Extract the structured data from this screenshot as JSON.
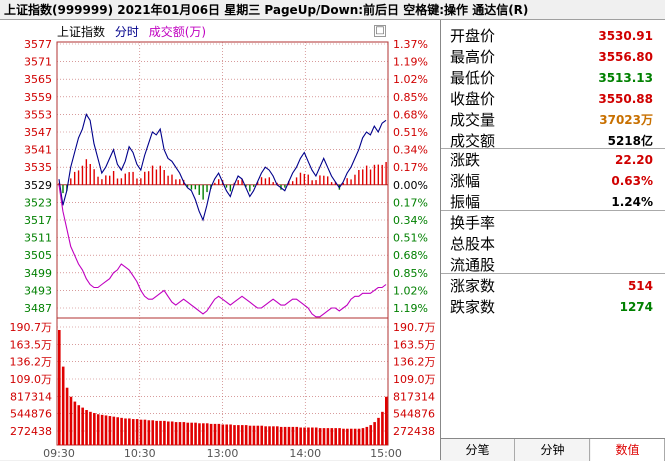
{
  "header": {
    "title": "上证指数(999999)  2021年01月06日 星期三 PageUp/Down:前后日 空格键:操作 通达信(R)"
  },
  "legend": {
    "name": "上证指数",
    "minute": "分时",
    "volume": "成交额(万)"
  },
  "close_glyph": "□",
  "stats": [
    {
      "label": "开盘价",
      "value": "3530.91",
      "color": "#d00000"
    },
    {
      "label": "最高价",
      "value": "3556.80",
      "color": "#d00000"
    },
    {
      "label": "最低价",
      "value": "3513.13",
      "color": "#008000"
    },
    {
      "label": "收盘价",
      "value": "3550.88",
      "color": "#d00000"
    },
    {
      "label": "成交量",
      "value": "37023万",
      "color": "#c87000"
    },
    {
      "label": "成交额",
      "value": "5218亿",
      "color": "#000000"
    },
    {
      "label": "涨跌",
      "value": "22.20",
      "color": "#d00000"
    },
    {
      "label": "涨幅",
      "value": "0.63%",
      "color": "#d00000"
    },
    {
      "label": "振幅",
      "value": "1.24%",
      "color": "#000000"
    },
    {
      "label": "换手率",
      "value": "",
      "color": "#000000"
    },
    {
      "label": "总股本",
      "value": "",
      "color": "#000000"
    },
    {
      "label": "流通股",
      "value": "",
      "color": "#000000"
    },
    {
      "label": "涨家数",
      "value": "514",
      "color": "#d00000"
    },
    {
      "label": "跌家数",
      "value": "1274",
      "color": "#008000"
    }
  ],
  "tabs": [
    "分笔",
    "分钟",
    "数值"
  ],
  "active_tab": 2,
  "chart_data": {
    "type": "line",
    "x_ticks": [
      "09:30",
      "10:30",
      "13:00",
      "14:00",
      "15:00"
    ],
    "price_ticks": [
      "3577",
      "3571",
      "3565",
      "3559",
      "3553",
      "3547",
      "3541",
      "3535",
      "3529",
      "3523",
      "3517",
      "3511",
      "3505",
      "3499",
      "3493",
      "3487"
    ],
    "pct_ticks": [
      "1.37%",
      "1.19%",
      "1.02%",
      "0.85%",
      "0.68%",
      "0.51%",
      "0.34%",
      "0.17%",
      "0.00%",
      "0.17%",
      "0.34%",
      "0.51%",
      "0.68%",
      "0.85%",
      "1.02%",
      "1.19%"
    ],
    "base_price": 3529,
    "price_range": [
      3487,
      3577
    ],
    "volume_ticks": [
      "190.7万",
      "163.5万",
      "136.2万",
      "109.0万",
      "817314",
      "544876",
      "272438"
    ],
    "volume_max": 1907000,
    "series": [
      {
        "name": "上证指数",
        "color": "#00008b",
        "values": [
          3530.9,
          3522,
          3527,
          3535,
          3540,
          3545,
          3548,
          3553,
          3551,
          3543,
          3538,
          3533,
          3535,
          3538,
          3541,
          3536,
          3534,
          3537,
          3542,
          3540,
          3536,
          3534,
          3539,
          3543,
          3547,
          3546,
          3548,
          3541,
          3538,
          3537,
          3535,
          3533,
          3530,
          3528,
          3527,
          3524,
          3520,
          3517,
          3522,
          3528,
          3531,
          3533,
          3530,
          3527,
          3525,
          3529,
          3532,
          3531,
          3528,
          3525,
          3527,
          3530,
          3533,
          3535,
          3534,
          3532,
          3529,
          3528,
          3527,
          3530,
          3533,
          3535,
          3538,
          3540,
          3537,
          3534,
          3532,
          3535,
          3538,
          3535,
          3532,
          3530,
          3528,
          3530,
          3533,
          3535,
          3538,
          3541,
          3545,
          3547,
          3546,
          3549,
          3547,
          3550,
          3551
        ]
      },
      {
        "name": "成交额(万)",
        "color": "#c000c0",
        "values": [
          3529,
          3520,
          3514,
          3508,
          3505,
          3502,
          3500,
          3497,
          3495,
          3494,
          3494,
          3495,
          3496,
          3497,
          3499,
          3500,
          3502,
          3501,
          3500,
          3498,
          3496,
          3493,
          3491,
          3490,
          3490,
          3491,
          3492,
          3493,
          3491,
          3489,
          3488,
          3489,
          3490,
          3489,
          3488,
          3487,
          3486,
          3485,
          3486,
          3488,
          3490,
          3491,
          3490,
          3489,
          3488,
          3489,
          3490,
          3491,
          3490,
          3489,
          3488,
          3487,
          3487,
          3488,
          3489,
          3490,
          3489,
          3488,
          3488,
          3489,
          3490,
          3490,
          3489,
          3488,
          3487,
          3485,
          3484,
          3484,
          3485,
          3486,
          3487,
          3487,
          3486,
          3487,
          3488,
          3490,
          3491,
          3491,
          3492,
          3492,
          3492,
          3493,
          3494,
          3494,
          3495
        ]
      }
    ],
    "volume": [
      190.7,
      130,
      95,
      80,
      72,
      66,
      62,
      58,
      55,
      53,
      51,
      50,
      49,
      48,
      47,
      46,
      45,
      44,
      44,
      43,
      43,
      42,
      42,
      41,
      41,
      40,
      40,
      40,
      39,
      39,
      38,
      38,
      38,
      37,
      37,
      37,
      36,
      36,
      36,
      35,
      35,
      35,
      34,
      34,
      34,
      33,
      33,
      33,
      33,
      32,
      32,
      32,
      32,
      31,
      31,
      31,
      31,
      30,
      30,
      30,
      30,
      30,
      29,
      29,
      29,
      29,
      29,
      28,
      28,
      28,
      28,
      28,
      28,
      27,
      27,
      27,
      27,
      27,
      28,
      30,
      33,
      38,
      45,
      55,
      80
    ],
    "volume_unit": "万",
    "grid": true
  }
}
